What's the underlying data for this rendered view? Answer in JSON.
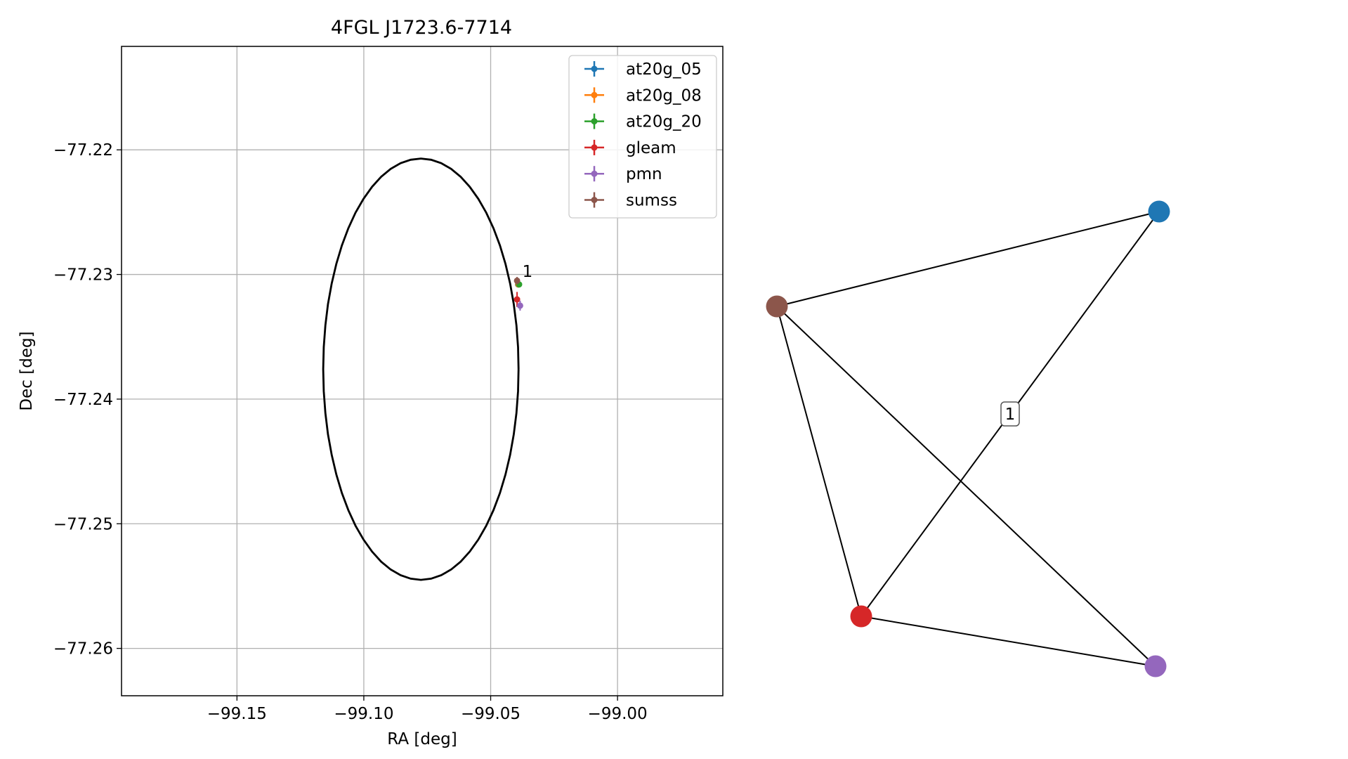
{
  "chart_data": [
    {
      "type": "scatter",
      "title": "4FGL J1723.6-7714",
      "xlabel": "RA [deg]",
      "ylabel": "Dec [deg]",
      "xlim": [
        -99.1955,
        -98.9585
      ],
      "ylim": [
        -77.2638,
        -77.2117
      ],
      "x_ticks": [
        -99.15,
        -99.1,
        -99.05,
        -99.0
      ],
      "x_tick_labels": [
        "−99.15",
        "−99.10",
        "−99.05",
        "−99.00"
      ],
      "y_ticks": [
        -77.22,
        -77.23,
        -77.24,
        -77.25,
        -77.26
      ],
      "y_tick_labels": [
        "−77.22",
        "−77.23",
        "−77.24",
        "−77.25",
        "−77.26"
      ],
      "grid": true,
      "legend_placement": "top-right",
      "circle": {
        "center": [
          -99.0775,
          -77.2376
        ],
        "ra_radius": 0.0385,
        "dec_radius": 0.0169
      },
      "series": [
        {
          "name": "at20g_05",
          "color": "#1f77b4",
          "points": [
            {
              "x": -99.0392,
              "y": -77.2308
            }
          ]
        },
        {
          "name": "at20g_08",
          "color": "#ff7f0e",
          "points": [
            {
              "x": -99.0391,
              "y": -77.2308
            }
          ]
        },
        {
          "name": "at20g_20",
          "color": "#2ca02c",
          "points": [
            {
              "x": -99.0388,
              "y": -77.2308
            }
          ]
        },
        {
          "name": "gleam",
          "color": "#d62728",
          "points": [
            {
              "x": -99.0396,
              "y": -77.232,
              "yerr": 0.0006
            }
          ]
        },
        {
          "name": "pmn",
          "color": "#9467bd",
          "points": [
            {
              "x": -99.0384,
              "y": -77.2325,
              "yerr": 0.0004
            }
          ]
        },
        {
          "name": "sumss",
          "color": "#8c564b",
          "points": [
            {
              "x": -99.0396,
              "y": -77.2305,
              "yerr": 0.0003
            }
          ]
        }
      ],
      "annotations": [
        {
          "text": "1",
          "x": -99.0375,
          "y": -77.2302
        }
      ]
    },
    {
      "type": "network",
      "nodes": [
        {
          "id": "at20g",
          "color": "#1f77b4"
        },
        {
          "id": "sumss",
          "color": "#8c564b"
        },
        {
          "id": "gleam",
          "color": "#d62728"
        },
        {
          "id": "pmn",
          "color": "#9467bd"
        }
      ],
      "edges": [
        {
          "source": "at20g",
          "target": "sumss",
          "label": ""
        },
        {
          "source": "at20g",
          "target": "gleam",
          "label": "1"
        },
        {
          "source": "sumss",
          "target": "gleam",
          "label": ""
        },
        {
          "source": "sumss",
          "target": "pmn",
          "label": ""
        },
        {
          "source": "gleam",
          "target": "pmn",
          "label": ""
        }
      ]
    }
  ]
}
